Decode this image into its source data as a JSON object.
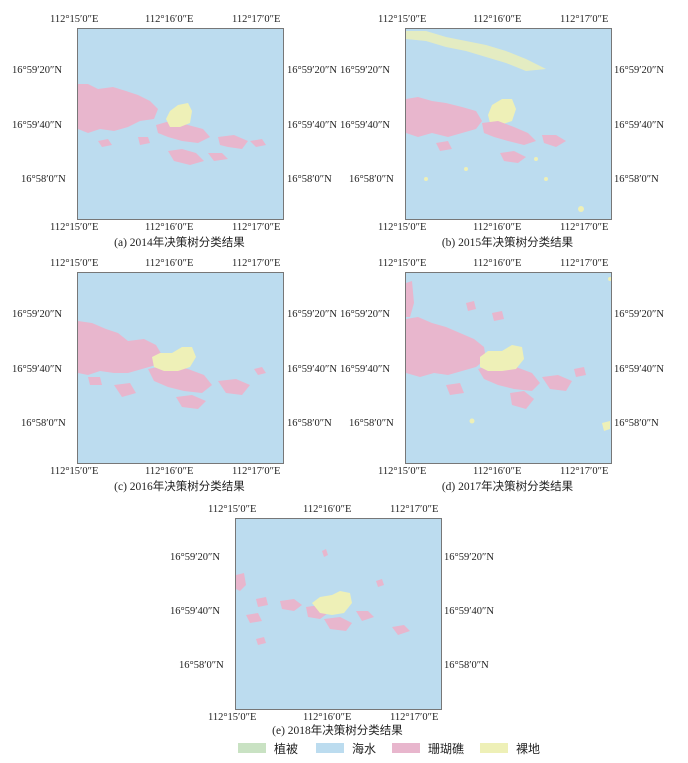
{
  "colors": {
    "vegetation": "#c9e2c3",
    "sea": "#bcdcef",
    "coral": "#e8b6cd",
    "bare": "#eef0b7"
  },
  "ticks": {
    "lon": [
      "112°15′0″E",
      "112°16′0″E",
      "112°17′0″E"
    ],
    "lat_left": [
      "16°59′20″N",
      "16°59′40″N",
      "16°58′0″N"
    ],
    "lat_right": [
      "16°59′20″N",
      "16°59′40″N",
      "16°58′0″N"
    ]
  },
  "panels": [
    {
      "id": "a",
      "caption": "(a) 2014年决策树分类结果"
    },
    {
      "id": "b",
      "caption": "(b) 2015年决策树分类结果"
    },
    {
      "id": "c",
      "caption": "(c) 2016年决策树分类结果"
    },
    {
      "id": "d",
      "caption": "(d) 2017年决策树分类结果"
    },
    {
      "id": "e",
      "caption": "(e) 2018年决策树分类结果"
    }
  ],
  "legend": [
    {
      "label": "植被",
      "color": "#c9e2c3"
    },
    {
      "label": "海水",
      "color": "#bcdcef"
    },
    {
      "label": "珊瑚礁",
      "color": "#e8b6cd"
    },
    {
      "label": "裸地",
      "color": "#eef0b7"
    }
  ]
}
